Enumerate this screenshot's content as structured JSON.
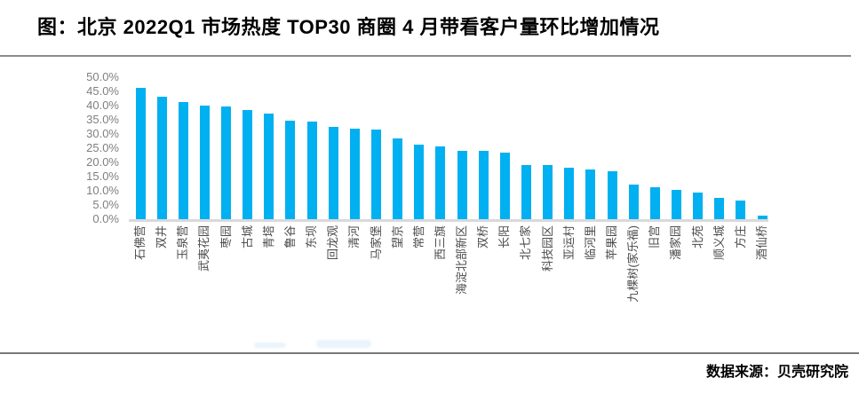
{
  "page": {
    "title": "图：北京 2022Q1 市场热度 TOP30 商圈 4 月带看客户量环比增加情况",
    "source_note": "数据来源：贝壳研究院"
  },
  "chart_data": {
    "type": "bar",
    "title": "图：北京 2022Q1 市场热度 TOP30 商圈 4 月带看客户量环比增加情况",
    "categories": [
      "石佛营",
      "双井",
      "玉泉营",
      "武夷花园",
      "枣园",
      "古城",
      "青塔",
      "鲁谷",
      "东坝",
      "回龙观",
      "清河",
      "马家堡",
      "望京",
      "常营",
      "西三旗",
      "海淀北部新区",
      "双桥",
      "长阳",
      "北七家",
      "科技园区",
      "亚运村",
      "临河里",
      "苹果园",
      "九棵树(家乐福)",
      "旧宫",
      "潘家园",
      "北苑",
      "顺义城",
      "方庄",
      "酒仙桥"
    ],
    "values": [
      46.2,
      43.0,
      41.3,
      40.1,
      39.8,
      38.5,
      37.1,
      34.7,
      34.3,
      32.4,
      31.9,
      31.6,
      28.4,
      26.2,
      25.6,
      24.2,
      24.1,
      23.3,
      19.1,
      19.0,
      18.1,
      17.5,
      16.9,
      12.1,
      11.3,
      10.2,
      9.4,
      7.6,
      6.7,
      1.2
    ],
    "unit": "%",
    "xlabel": "",
    "ylabel": "",
    "ylim": [
      0,
      50
    ],
    "ytick_step": 5,
    "ytick_labels": [
      "0.0%",
      "5.0%",
      "10.0%",
      "15.0%",
      "20.0%",
      "25.0%",
      "30.0%",
      "35.0%",
      "40.0%",
      "45.0%",
      "50.0%"
    ],
    "bar_color": "#00B0F0",
    "baseline_color": "#D9D9D9",
    "grid": false,
    "legend": false
  }
}
